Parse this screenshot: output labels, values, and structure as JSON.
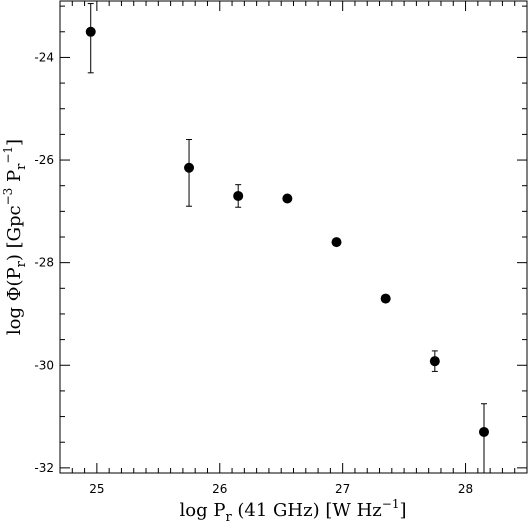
{
  "chart_data": {
    "type": "scatter",
    "x_axis": {
      "label_parts": {
        "main": "log P",
        "sub": "r",
        "rest": " (41 GHz) [W Hz",
        "sup": "−1",
        "close": "]"
      },
      "range": [
        24.7,
        28.5
      ],
      "major_ticks": [
        25,
        26,
        27,
        28
      ],
      "tick_labels": [
        "25",
        "26",
        "27",
        "28"
      ]
    },
    "y_axis": {
      "label_parts": {
        "pre": "log Φ(P",
        "sub1": "r",
        "mid": ") [Gpc",
        "sup1": "−3",
        "mid2": " P",
        "sub2": "r",
        "sup2": "−1",
        "close": "]"
      },
      "range": [
        -32.1,
        -22.9
      ],
      "major_ticks": [
        -24,
        -26,
        -28,
        -30,
        -32
      ],
      "tick_labels": [
        "-24",
        "-26",
        "-28",
        "-30",
        "-32"
      ]
    },
    "points": [
      {
        "x": 24.95,
        "y": -23.5,
        "err_low": 0.8,
        "err_high": 0.55
      },
      {
        "x": 25.75,
        "y": -26.15,
        "err_low": 0.75,
        "err_high": 0.55
      },
      {
        "x": 26.15,
        "y": -26.7,
        "err_low": 0.22,
        "err_high": 0.22
      },
      {
        "x": 26.55,
        "y": -26.75,
        "err_low": 0,
        "err_high": 0
      },
      {
        "x": 26.95,
        "y": -27.6,
        "err_low": 0,
        "err_high": 0
      },
      {
        "x": 27.35,
        "y": -28.7,
        "err_low": 0,
        "err_high": 0
      },
      {
        "x": 27.75,
        "y": -29.92,
        "err_low": 0.2,
        "err_high": 0.2
      },
      {
        "x": 28.15,
        "y": -31.3,
        "err_low": 0.8,
        "err_high": 0.55
      }
    ],
    "grid": false,
    "marker_color": "#000000"
  }
}
